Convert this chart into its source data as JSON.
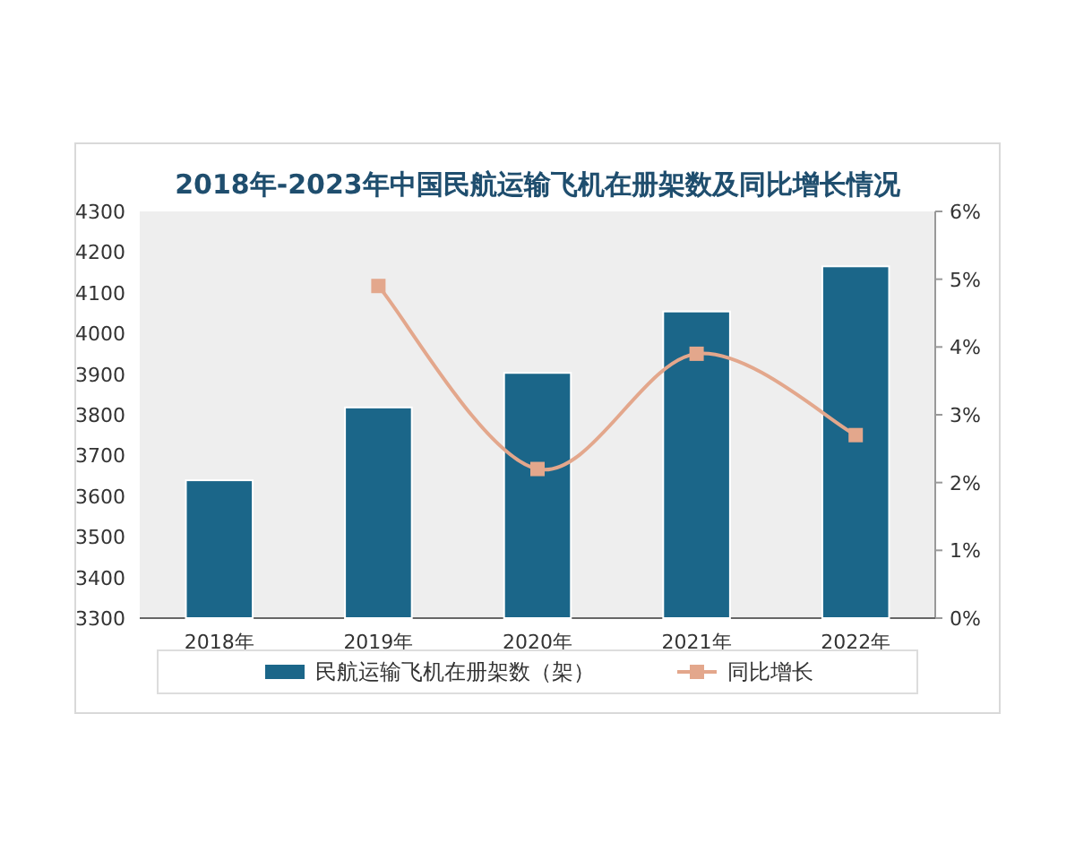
{
  "chart_data": {
    "type": "bar",
    "title": "2018年-2023年中国民航运输飞机在册架数及同比增长情况",
    "categories": [
      "2018年",
      "2019年",
      "2020年",
      "2021年",
      "2022年"
    ],
    "series": [
      {
        "name": "民航运输飞机在册架数（架）",
        "color": "#1b6689",
        "values": [
          3639,
          3818,
          3903,
          4054,
          4165
        ]
      },
      {
        "name": "同比增长",
        "type": "line",
        "axis": "y2",
        "color": "#e3a78c",
        "marker": "square",
        "values": [
          null,
          4.9,
          2.2,
          3.9,
          2.7
        ]
      }
    ],
    "ylim": [
      3300,
      4300
    ],
    "yticks": [
      3300,
      3400,
      3500,
      3600,
      3700,
      3800,
      3900,
      4000,
      4100,
      4200,
      4300
    ],
    "y2lim": [
      0,
      6
    ],
    "y2ticks": [
      {
        "value": 0,
        "label": "0%"
      },
      {
        "value": 1,
        "label": "1%"
      },
      {
        "value": 2,
        "label": "2%"
      },
      {
        "value": 3,
        "label": "3%"
      },
      {
        "value": 4,
        "label": "4%"
      },
      {
        "value": 5,
        "label": "5%"
      },
      {
        "value": 6,
        "label": "6%"
      }
    ],
    "legend": "bottom",
    "grid": false
  }
}
